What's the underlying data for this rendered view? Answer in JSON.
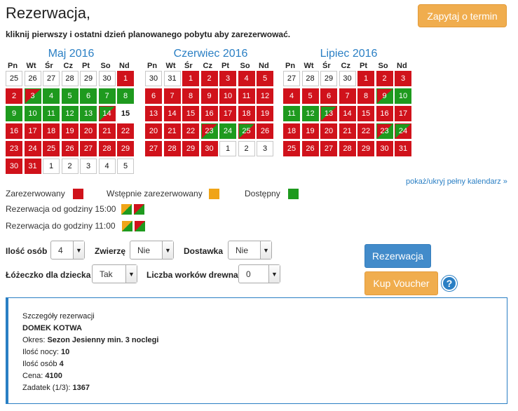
{
  "header": {
    "title": "Rezerwacja,",
    "subtitle": "kliknij pierwszy i ostatni dzień planowanego pobytu aby zarezerwować.",
    "ask_button": "Zapytaj o termin"
  },
  "weekdays": [
    "Pn",
    "Wt",
    "Śr",
    "Cz",
    "Pt",
    "So",
    "Nd"
  ],
  "calendars": [
    {
      "title": "Maj 2016",
      "days": [
        {
          "d": "25",
          "s": "o"
        },
        {
          "d": "26",
          "s": "o"
        },
        {
          "d": "27",
          "s": "o"
        },
        {
          "d": "28",
          "s": "o"
        },
        {
          "d": "29",
          "s": "o"
        },
        {
          "d": "30",
          "s": "o"
        },
        {
          "d": "1",
          "s": "r"
        },
        {
          "d": "2",
          "s": "r"
        },
        {
          "d": "3",
          "s": "ra"
        },
        {
          "d": "4",
          "s": "a"
        },
        {
          "d": "5",
          "s": "a"
        },
        {
          "d": "6",
          "s": "a"
        },
        {
          "d": "7",
          "s": "a"
        },
        {
          "d": "8",
          "s": "a"
        },
        {
          "d": "9",
          "s": "a"
        },
        {
          "d": "10",
          "s": "a"
        },
        {
          "d": "11",
          "s": "a"
        },
        {
          "d": "12",
          "s": "a"
        },
        {
          "d": "13",
          "s": "a"
        },
        {
          "d": "14",
          "s": "ar"
        },
        {
          "d": "15",
          "s": "today"
        },
        {
          "d": "16",
          "s": "r"
        },
        {
          "d": "17",
          "s": "r"
        },
        {
          "d": "18",
          "s": "r"
        },
        {
          "d": "19",
          "s": "r"
        },
        {
          "d": "20",
          "s": "r"
        },
        {
          "d": "21",
          "s": "r"
        },
        {
          "d": "22",
          "s": "r"
        },
        {
          "d": "23",
          "s": "r"
        },
        {
          "d": "24",
          "s": "r"
        },
        {
          "d": "25",
          "s": "r"
        },
        {
          "d": "26",
          "s": "r"
        },
        {
          "d": "27",
          "s": "r"
        },
        {
          "d": "28",
          "s": "r"
        },
        {
          "d": "29",
          "s": "r"
        },
        {
          "d": "30",
          "s": "r"
        },
        {
          "d": "31",
          "s": "r"
        },
        {
          "d": "1",
          "s": "o"
        },
        {
          "d": "2",
          "s": "o"
        },
        {
          "d": "3",
          "s": "o"
        },
        {
          "d": "4",
          "s": "o"
        },
        {
          "d": "5",
          "s": "o"
        }
      ]
    },
    {
      "title": "Czerwiec 2016",
      "days": [
        {
          "d": "30",
          "s": "o"
        },
        {
          "d": "31",
          "s": "o"
        },
        {
          "d": "1",
          "s": "r"
        },
        {
          "d": "2",
          "s": "r"
        },
        {
          "d": "3",
          "s": "r"
        },
        {
          "d": "4",
          "s": "r"
        },
        {
          "d": "5",
          "s": "r"
        },
        {
          "d": "6",
          "s": "r"
        },
        {
          "d": "7",
          "s": "r"
        },
        {
          "d": "8",
          "s": "r"
        },
        {
          "d": "9",
          "s": "r"
        },
        {
          "d": "10",
          "s": "r"
        },
        {
          "d": "11",
          "s": "r"
        },
        {
          "d": "12",
          "s": "r"
        },
        {
          "d": "13",
          "s": "r"
        },
        {
          "d": "14",
          "s": "r"
        },
        {
          "d": "15",
          "s": "r"
        },
        {
          "d": "16",
          "s": "r"
        },
        {
          "d": "17",
          "s": "r"
        },
        {
          "d": "18",
          "s": "r"
        },
        {
          "d": "19",
          "s": "r"
        },
        {
          "d": "20",
          "s": "r"
        },
        {
          "d": "21",
          "s": "r"
        },
        {
          "d": "22",
          "s": "r"
        },
        {
          "d": "23",
          "s": "ra"
        },
        {
          "d": "24",
          "s": "a"
        },
        {
          "d": "25",
          "s": "ar"
        },
        {
          "d": "26",
          "s": "r"
        },
        {
          "d": "27",
          "s": "r"
        },
        {
          "d": "28",
          "s": "r"
        },
        {
          "d": "29",
          "s": "r"
        },
        {
          "d": "30",
          "s": "r"
        },
        {
          "d": "1",
          "s": "o"
        },
        {
          "d": "2",
          "s": "o"
        },
        {
          "d": "3",
          "s": "o"
        }
      ]
    },
    {
      "title": "Lipiec 2016",
      "days": [
        {
          "d": "27",
          "s": "o"
        },
        {
          "d": "28",
          "s": "o"
        },
        {
          "d": "29",
          "s": "o"
        },
        {
          "d": "30",
          "s": "o"
        },
        {
          "d": "1",
          "s": "r"
        },
        {
          "d": "2",
          "s": "r"
        },
        {
          "d": "3",
          "s": "r"
        },
        {
          "d": "4",
          "s": "r"
        },
        {
          "d": "5",
          "s": "r"
        },
        {
          "d": "6",
          "s": "r"
        },
        {
          "d": "7",
          "s": "r"
        },
        {
          "d": "8",
          "s": "r"
        },
        {
          "d": "9",
          "s": "ra"
        },
        {
          "d": "10",
          "s": "a"
        },
        {
          "d": "11",
          "s": "a"
        },
        {
          "d": "12",
          "s": "a"
        },
        {
          "d": "13",
          "s": "ar"
        },
        {
          "d": "14",
          "s": "r"
        },
        {
          "d": "15",
          "s": "r"
        },
        {
          "d": "16",
          "s": "r"
        },
        {
          "d": "17",
          "s": "r"
        },
        {
          "d": "18",
          "s": "r"
        },
        {
          "d": "19",
          "s": "r"
        },
        {
          "d": "20",
          "s": "r"
        },
        {
          "d": "21",
          "s": "r"
        },
        {
          "d": "22",
          "s": "r"
        },
        {
          "d": "23",
          "s": "ra"
        },
        {
          "d": "24",
          "s": "ar"
        },
        {
          "d": "25",
          "s": "r"
        },
        {
          "d": "26",
          "s": "r"
        },
        {
          "d": "27",
          "s": "r"
        },
        {
          "d": "28",
          "s": "r"
        },
        {
          "d": "29",
          "s": "r"
        },
        {
          "d": "30",
          "s": "r"
        },
        {
          "d": "31",
          "s": "r"
        }
      ]
    }
  ],
  "toggle_link": "pokaż/ukryj pełny kalendarz »",
  "legend": {
    "reserved": "Zarezerwowany",
    "pre_reserved": "Wstępnie zarezerwowany",
    "available": "Dostępny",
    "from_hour": "Rezerwacja od godziny 15:00",
    "to_hour": "Rezerwacja do godziny 11:00",
    "colors": {
      "reserved": "#d0121b",
      "pre_reserved": "#f0a417",
      "available": "#1e9a1e"
    }
  },
  "form": {
    "persons_label": "Ilość osób",
    "persons_value": "4",
    "pet_label": "Zwierzę",
    "pet_value": "Nie",
    "delivery_label": "Dostawka",
    "delivery_value": "Nie",
    "crib_label": "Łóżeczko dla dziecka",
    "crib_value": "Tak",
    "wood_label": "Liczba worków drewna",
    "wood_value": "0"
  },
  "buttons": {
    "reserve": "Rezerwacja",
    "voucher": "Kup Voucher",
    "help": "?"
  },
  "details": {
    "heading": "Szczegóły rezerwacji",
    "name": "DOMEK KOTWA",
    "period_label": "Okres: ",
    "period_value": "Sezon Jesienny min. 3 noclegi",
    "nights_label": "Ilość nocy: ",
    "nights_value": "10",
    "persons_label": "Ilość osób ",
    "persons_value": "4",
    "price_label": "Cena: ",
    "price_value": "4100",
    "deposit_label": "Zadatek (1/3): ",
    "deposit_value": "1367"
  }
}
